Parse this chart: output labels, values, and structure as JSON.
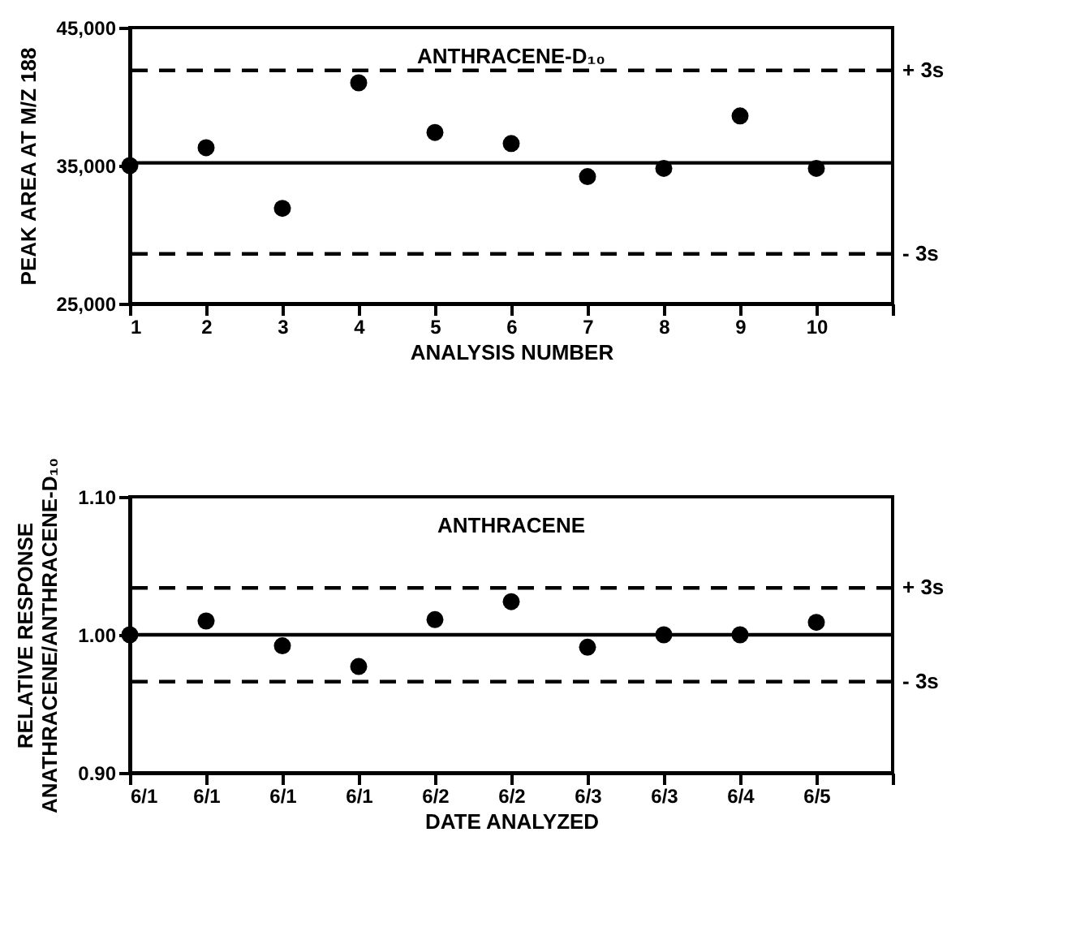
{
  "chart_data": [
    {
      "type": "scatter",
      "title": "ANTHRACENE-D₁₀",
      "xlabel": "ANALYSIS NUMBER",
      "ylabel": "PEAK AREA AT M/Z 188",
      "x": [
        1,
        2,
        3,
        4,
        5,
        6,
        7,
        8,
        9,
        10
      ],
      "series": [
        {
          "color": "#000000",
          "values": [
            35000,
            36300,
            31900,
            41000,
            37400,
            36600,
            34200,
            34800,
            38600,
            34800
          ]
        }
      ],
      "xlim": [
        1,
        11
      ],
      "xticks": [
        1,
        2,
        3,
        4,
        5,
        6,
        7,
        8,
        9,
        10,
        {
          "value": 11,
          "label": null
        }
      ],
      "ylim": [
        25000,
        45000
      ],
      "yticks": [
        {
          "value": 25000,
          "label": "25,000"
        },
        {
          "value": 35000,
          "label": "35,000"
        },
        {
          "value": 45000,
          "label": "45,000"
        }
      ],
      "ref_lines": [
        {
          "axis": "y",
          "value": 41900,
          "label": "+ 3s",
          "line_style": "dashed"
        },
        {
          "axis": "y",
          "value": 35200,
          "line_style": "solid"
        },
        {
          "axis": "y",
          "value": 28600,
          "label": "- 3s",
          "line_style": "dashed"
        }
      ],
      "marker": "circle",
      "grid": false,
      "legend": false
    },
    {
      "type": "scatter",
      "title": "ANTHRACENE",
      "xlabel": "DATE ANALYZED",
      "ylabel": "RELATIVE RESPONSE\nANATHRACENE/ANTHRACENE-D₁₀",
      "categories": [
        "6/1",
        "6/1",
        "6/1",
        "6/1",
        "6/2",
        "6/2",
        "6/3",
        "6/3",
        "6/4",
        "6/5"
      ],
      "series": [
        {
          "color": "#000000",
          "values": [
            1.0,
            1.01,
            0.992,
            0.977,
            1.011,
            1.024,
            0.991,
            1.0,
            1.0,
            1.009
          ]
        }
      ],
      "ylim": [
        0.9,
        1.1
      ],
      "yticks": [
        {
          "value": 0.9,
          "label": "0.90"
        },
        {
          "value": 1.0,
          "label": "1.00"
        },
        {
          "value": 1.1,
          "label": "1.10"
        }
      ],
      "ref_lines": [
        {
          "axis": "y",
          "value": 1.034,
          "label": "+ 3s",
          "line_style": "dashed"
        },
        {
          "axis": "y",
          "value": 1.0,
          "line_style": "solid"
        },
        {
          "axis": "y",
          "value": 0.966,
          "label": "- 3s",
          "line_style": "dashed"
        }
      ],
      "marker": "circle",
      "grid": false,
      "legend": false
    }
  ]
}
